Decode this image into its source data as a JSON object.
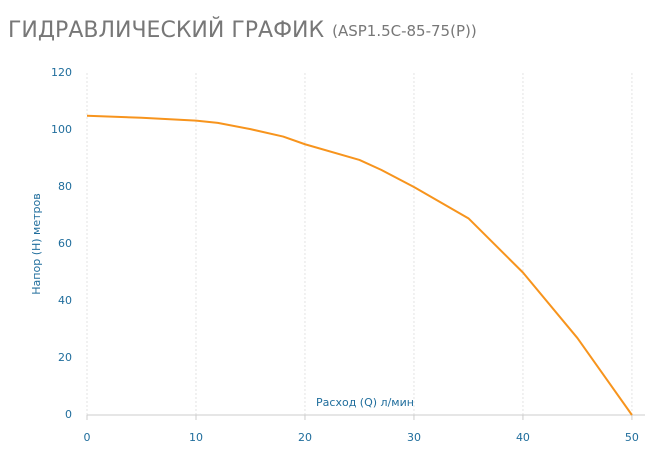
{
  "chart_data": {
    "type": "line",
    "title": "ГИДРАВЛИЧЕСКИЙ ГРАФИК",
    "subtitle": "(ASP1.5C-85-75(P))",
    "x_label": "Расход (Q) л/мин",
    "y_label": "Напор (H) метров",
    "x": [
      0,
      5,
      10,
      12,
      15,
      18,
      20,
      25,
      27,
      30,
      35,
      40,
      45,
      50
    ],
    "series": [
      {
        "name": "ASP1.5C-85-75(P)",
        "color": "#f7941d",
        "values": [
          105,
          104.3,
          103.3,
          102.5,
          100.3,
          97.7,
          95,
          89.5,
          86,
          80,
          69,
          50,
          27,
          0
        ]
      }
    ],
    "xlim": [
      0,
      51.2
    ],
    "xticks": [
      0,
      10,
      20,
      30,
      40,
      50
    ],
    "ylim": [
      0,
      120
    ],
    "yticks": [
      0,
      20,
      40,
      60,
      80,
      100,
      120
    ],
    "grid": true
  }
}
